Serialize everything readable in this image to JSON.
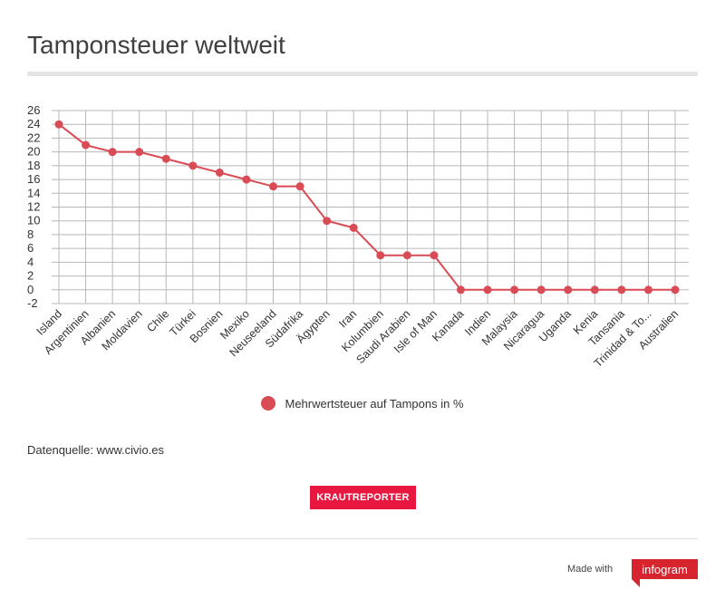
{
  "header": {
    "title": "Tamponsteuer weltweit"
  },
  "chart_data": {
    "type": "line",
    "title": "Tamponsteuer weltweit",
    "xlabel": "",
    "ylabel": "",
    "categories": [
      "Island",
      "Argentinien",
      "Albanien",
      "Moldavien",
      "Chile",
      "Türkei",
      "Bosnien",
      "Mexiko",
      "Neuseeland",
      "Südafrika",
      "Ägypten",
      "Iran",
      "Kolumbien",
      "Saudi Arabien",
      "Isle of Man",
      "Kanada",
      "Indien",
      "Malaysia",
      "Nicaragua",
      "Uganda",
      "Kenia",
      "Tansania",
      "Trinidad & To...",
      "Australien"
    ],
    "series": [
      {
        "name": "Mehrwertsteuer auf Tampons in %",
        "color": "#d94b55",
        "values": [
          24,
          21,
          20,
          20,
          19,
          18,
          17,
          16,
          15,
          15,
          10,
          9,
          5,
          5,
          5,
          0,
          0,
          0,
          0,
          0,
          0,
          0,
          0,
          0
        ]
      }
    ],
    "yticks": [
      26,
      24,
      22,
      20,
      18,
      16,
      14,
      12,
      10,
      8,
      6,
      4,
      2,
      0,
      -2
    ],
    "ylim": [
      -2,
      26
    ],
    "grid": true,
    "legend_position": "bottom"
  },
  "source": {
    "text": "Datenquelle: www.civio.es"
  },
  "brand_button": {
    "label": "KRAUTREPORTER",
    "color": "#e8173f"
  },
  "footer": {
    "made_with": "Made with",
    "badge": "infogram",
    "badge_color": "#d6252e"
  }
}
